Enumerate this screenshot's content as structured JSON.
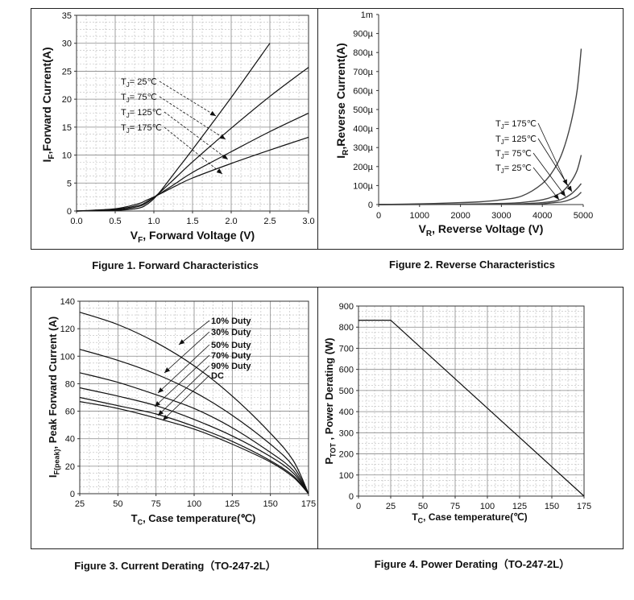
{
  "charts": [
    {
      "type": "line",
      "caption": "Figure 1. Forward Characteristics",
      "xlabel": "V_F, Forward Voltage (V)",
      "ylabel": "I_F,Forward Current(A)",
      "xlim": [
        0,
        3.0
      ],
      "ylim": [
        0,
        35
      ],
      "xticks": [
        "0.0",
        "0.5",
        "1.0",
        "1.5",
        "2.0",
        "2.5",
        "3.0"
      ],
      "yticks": [
        "0",
        "5",
        "10",
        "15",
        "20",
        "25",
        "30",
        "35"
      ],
      "grid": true,
      "series": [
        {
          "name": "T_J= 25℃",
          "x": [
            0,
            0.5,
            0.8,
            0.9,
            1.0,
            1.1,
            1.3,
            1.5,
            2.0,
            2.5
          ],
          "y": [
            0,
            0.1,
            0.5,
            1.1,
            2.2,
            3.8,
            7.4,
            11.0,
            20.3,
            30.0
          ]
        },
        {
          "name": "T_J= 75℃",
          "x": [
            0,
            0.5,
            0.8,
            0.9,
            1.0,
            1.1,
            1.3,
            1.5,
            2.0,
            2.5,
            3.0
          ],
          "y": [
            0,
            0.2,
            0.8,
            1.4,
            2.4,
            3.6,
            6.2,
            8.8,
            14.8,
            20.5,
            25.7
          ]
        },
        {
          "name": "T_J= 125℃",
          "x": [
            0,
            0.5,
            0.8,
            0.9,
            1.0,
            1.1,
            1.3,
            1.5,
            2.0,
            2.5,
            3.0
          ],
          "y": [
            0,
            0.3,
            1.0,
            1.6,
            2.4,
            3.3,
            5.1,
            6.9,
            10.6,
            14.2,
            17.5
          ]
        },
        {
          "name": "T_J= 175℃",
          "x": [
            0,
            0.5,
            0.8,
            0.9,
            1.0,
            1.1,
            1.3,
            1.5,
            2.0,
            2.5,
            3.0
          ],
          "y": [
            0,
            0.4,
            1.3,
            1.9,
            2.5,
            3.2,
            4.6,
            5.9,
            8.5,
            10.9,
            13.2
          ]
        }
      ]
    },
    {
      "type": "line",
      "caption": "Figure 2. Reverse Characteristics",
      "xlabel": "V_R, Reverse Voltage (V)",
      "ylabel": "I_R,Reverse Current(A)",
      "xlim": [
        0,
        5000
      ],
      "ylim": [
        0,
        0.001
      ],
      "xticks": [
        "0",
        "1000",
        "2000",
        "3000",
        "4000",
        "5000"
      ],
      "yticks": [
        "0",
        "100µ",
        "200µ",
        "300µ",
        "400µ",
        "500µ",
        "600µ",
        "700µ",
        "800µ",
        "900µ",
        "1m"
      ],
      "grid": false,
      "series": [
        {
          "name": "T_J= 175℃",
          "x": [
            0,
            1000,
            2000,
            2500,
            3000,
            3500,
            4000,
            4300,
            4500,
            4700,
            4850,
            4950
          ],
          "y": [
            0,
            4e-06,
            1e-05,
            1.5e-05,
            2.5e-05,
            4.5e-05,
            0.00011,
            0.00019,
            0.00028,
            0.00043,
            0.0006,
            0.00082
          ]
        },
        {
          "name": "T_J= 125℃",
          "x": [
            0,
            2000,
            3000,
            3500,
            4000,
            4300,
            4500,
            4700,
            4850,
            4950
          ],
          "y": [
            0,
            2e-06,
            6e-06,
            1.1e-05,
            2.5e-05,
            4.5e-05,
            7e-05,
            0.00012,
            0.00018,
            0.00026
          ]
        },
        {
          "name": "T_J= 75℃",
          "x": [
            0,
            3000,
            3500,
            4000,
            4300,
            4500,
            4700,
            4850,
            4950
          ],
          "y": [
            0,
            2e-06,
            4e-06,
            1e-05,
            1.8e-05,
            3e-05,
            5.5e-05,
            8.5e-05,
            0.00011
          ]
        },
        {
          "name": "T_J= 25℃",
          "x": [
            0,
            3500,
            4000,
            4300,
            4500,
            4700,
            4850,
            4950
          ],
          "y": [
            0,
            2e-06,
            4e-06,
            1e-05,
            1.5e-05,
            2.8e-05,
            4.5e-05,
            6.5e-05
          ]
        }
      ]
    },
    {
      "type": "line",
      "caption": "Figure 3. Current Derating（TO-247-2L）",
      "xlabel": "T_C, Case temperature(℃)",
      "ylabel": "I_F(peak), Peak Forward Current (A)",
      "xlim": [
        25,
        175
      ],
      "ylim": [
        0,
        140
      ],
      "xticks": [
        "25",
        "50",
        "75",
        "100",
        "125",
        "150",
        "175"
      ],
      "yticks": [
        "0",
        "20",
        "40",
        "60",
        "80",
        "100",
        "120",
        "140"
      ],
      "grid": true,
      "series": [
        {
          "name": "10% Duty",
          "x": [
            25,
            50,
            75,
            100,
            125,
            150,
            165,
            175
          ],
          "y": [
            132,
            123,
            110,
            93,
            71,
            44,
            24,
            0
          ]
        },
        {
          "name": "30% Duty",
          "x": [
            25,
            50,
            75,
            100,
            125,
            150,
            165,
            175
          ],
          "y": [
            105,
            97,
            87,
            74,
            57,
            36,
            20,
            0
          ]
        },
        {
          "name": "50% Duty",
          "x": [
            25,
            50,
            75,
            100,
            125,
            150,
            165,
            175
          ],
          "y": [
            88,
            81,
            72,
            62,
            48,
            30,
            17,
            0
          ]
        },
        {
          "name": "70% Duty",
          "x": [
            25,
            50,
            75,
            100,
            125,
            150,
            165,
            175
          ],
          "y": [
            77,
            71,
            64,
            54,
            42,
            27,
            15,
            0
          ]
        },
        {
          "name": "90% Duty",
          "x": [
            25,
            50,
            75,
            100,
            125,
            150,
            165,
            175
          ],
          "y": [
            70,
            64,
            58,
            49,
            38,
            24,
            13,
            0
          ]
        },
        {
          "name": "DC",
          "x": [
            25,
            50,
            75,
            100,
            125,
            150,
            165,
            175
          ],
          "y": [
            67,
            62,
            55,
            47,
            36,
            23,
            12,
            0
          ]
        }
      ]
    },
    {
      "type": "line",
      "caption": "Figure 4. Power Derating（TO-247-2L）",
      "xlabel": "T_C, Case temperature(℃)",
      "ylabel": "P_TOT , Power Derating (W)",
      "xlim": [
        0,
        175
      ],
      "ylim": [
        0,
        900
      ],
      "xticks": [
        "0",
        "25",
        "50",
        "75",
        "100",
        "125",
        "150",
        "175"
      ],
      "yticks": [
        "0",
        "100",
        "200",
        "300",
        "400",
        "500",
        "600",
        "700",
        "800",
        "900"
      ],
      "grid": true,
      "series": [
        {
          "name": "",
          "x": [
            0,
            25,
            175
          ],
          "y": [
            833,
            833,
            0
          ]
        }
      ]
    }
  ]
}
